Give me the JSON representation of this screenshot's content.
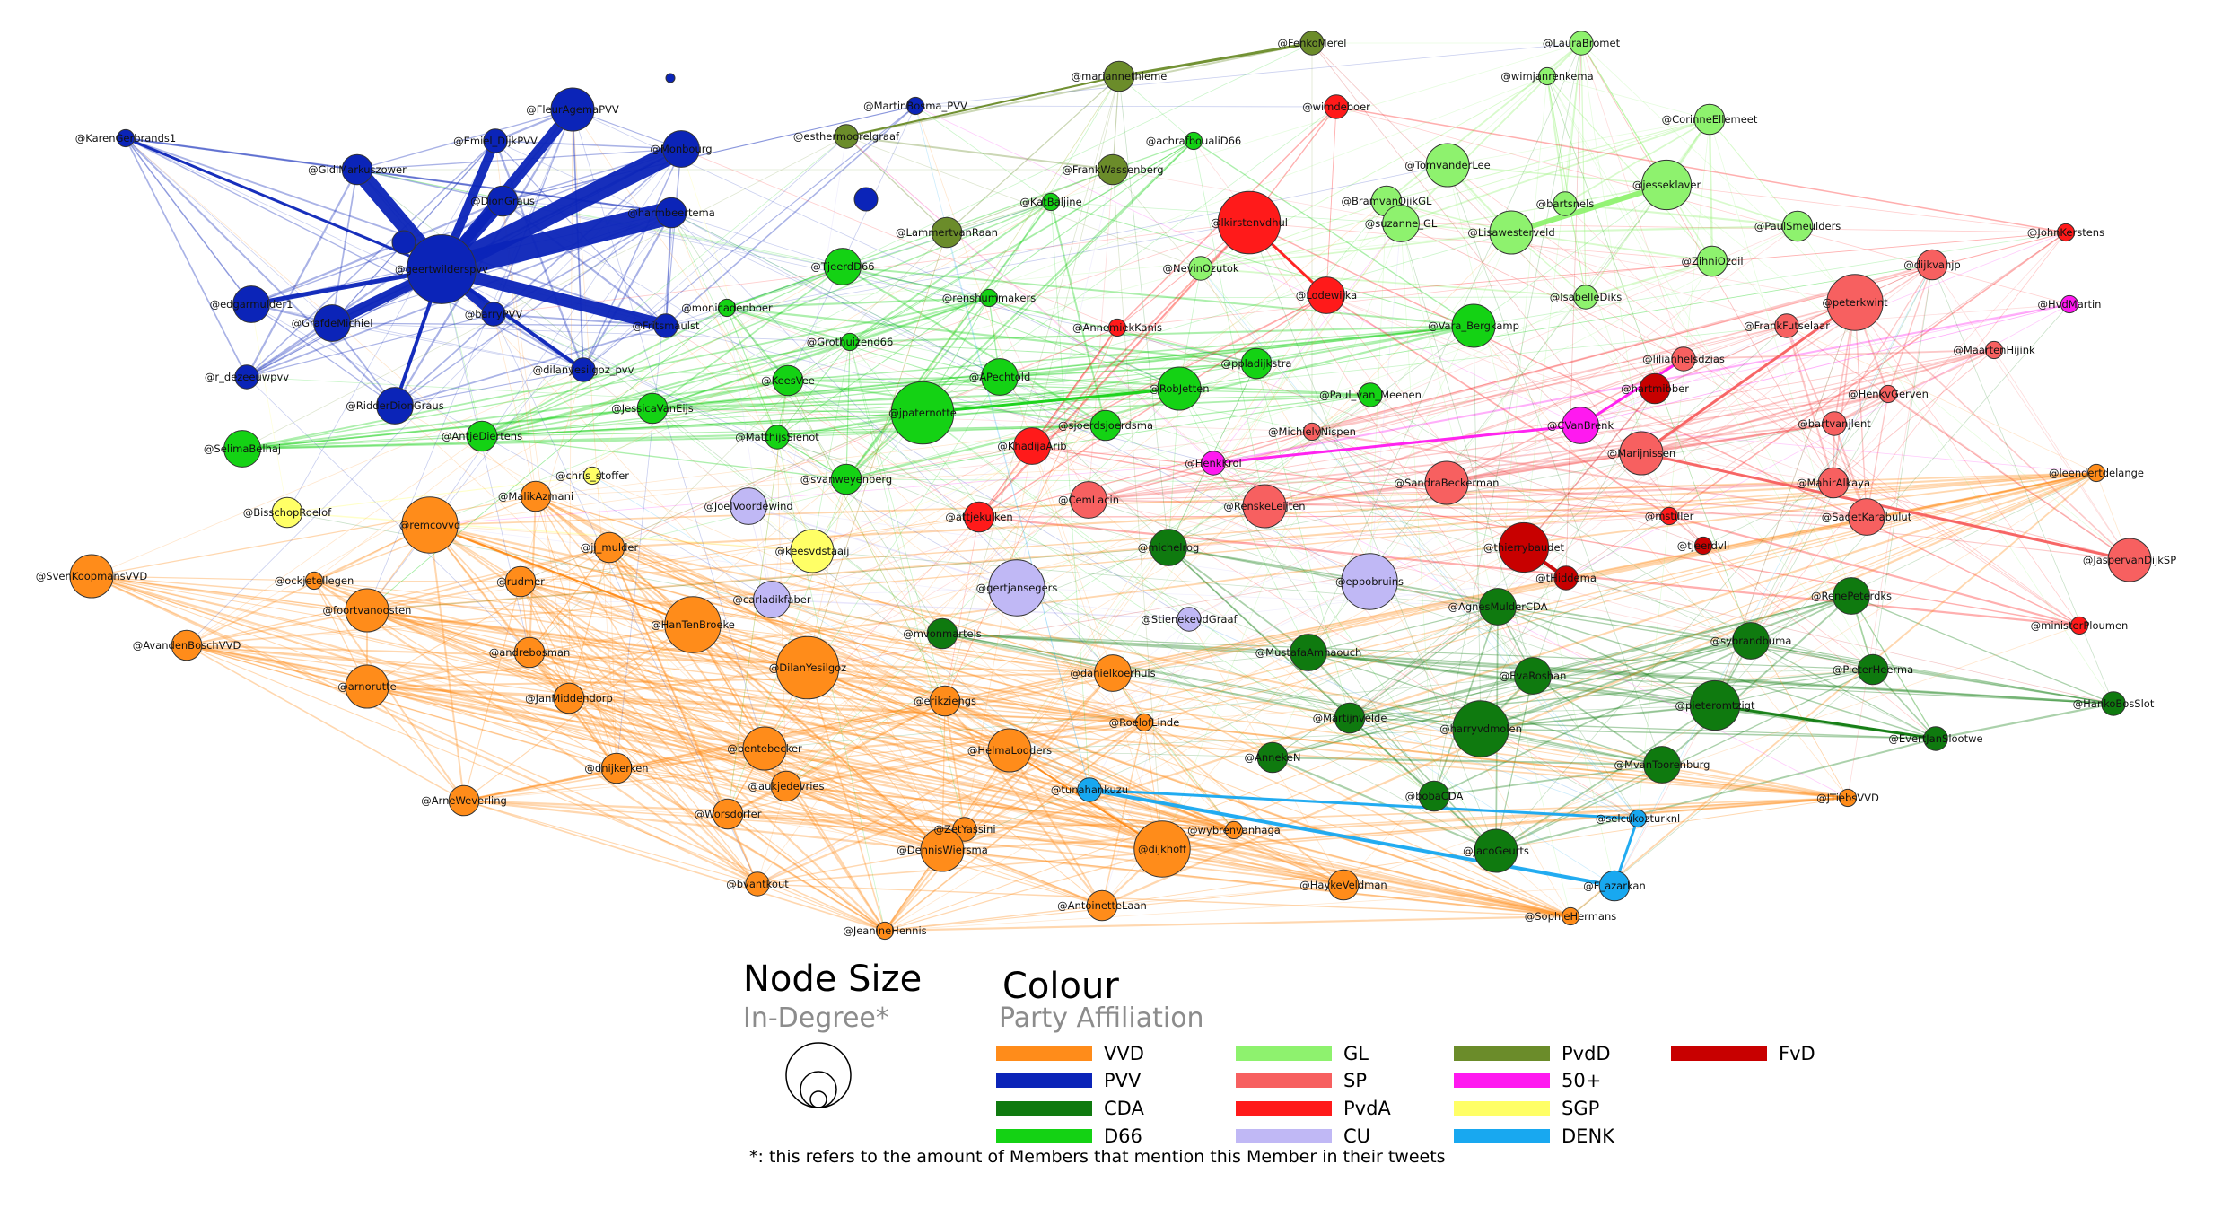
{
  "legend": {
    "size_title": "Node Size",
    "size_subtitle": "In-Degree*",
    "colour_title": "Colour",
    "colour_subtitle": "Party Affiliation",
    "footnote": "*: this refers to the amount of Members that mention this Member in their tweets",
    "parties": [
      {
        "name": "VVD",
        "color": "#ff8c1a"
      },
      {
        "name": "PVV",
        "color": "#0b24b8"
      },
      {
        "name": "CDA",
        "color": "#0f7a0f"
      },
      {
        "name": "D66",
        "color": "#14d214"
      },
      {
        "name": "GL",
        "color": "#8ef26e"
      },
      {
        "name": "SP",
        "color": "#f76060"
      },
      {
        "name": "PvdA",
        "color": "#ff1a1a"
      },
      {
        "name": "CU",
        "color": "#c0b8f5"
      },
      {
        "name": "PvdD",
        "color": "#6b8c2a"
      },
      {
        "name": "50+",
        "color": "#ff19f0"
      },
      {
        "name": "SGP",
        "color": "#ffff66"
      },
      {
        "name": "DENK",
        "color": "#18a8f0"
      },
      {
        "name": "FvD",
        "color": "#c80000"
      }
    ]
  },
  "nodes": [
    {
      "label": "@FleurAgemaPVV",
      "party": "PVV",
      "indeg": 5
    },
    {
      "label": "@Emiel_DijkPVV",
      "party": "PVV",
      "indeg": 2
    },
    {
      "label": "@Monbourg",
      "party": "PVV",
      "indeg": 4
    },
    {
      "label": "@KarenGerbrands1",
      "party": "PVV",
      "indeg": 1
    },
    {
      "label": "@GidiMarkuszower",
      "party": "PVV",
      "indeg": 3
    },
    {
      "label": "@harmbeertema",
      "party": "PVV",
      "indeg": 3
    },
    {
      "label": "@DionGraus",
      "party": "PVV",
      "indeg": 3
    },
    {
      "label": "@geertwilderspvv",
      "party": "PVV",
      "indeg": 9
    },
    {
      "label": "@edgarmulder1",
      "party": "PVV",
      "indeg": 4
    },
    {
      "label": "@GrafdeMichiel",
      "party": "PVV",
      "indeg": 4
    },
    {
      "label": "@barryPVV",
      "party": "PVV",
      "indeg": 2
    },
    {
      "label": "@Fritsmaulst",
      "party": "PVV",
      "indeg": 2
    },
    {
      "label": "@r_dezeeuwpvv",
      "party": "PVV",
      "indeg": 2
    },
    {
      "label": "@dilanyesilgoz_pvv",
      "party": "PVV",
      "indeg": 2
    },
    {
      "label": "@RidderDionGraus",
      "party": "PVV",
      "indeg": 4
    },
    {
      "label": "@MartinBosma_PVV",
      "party": "PVV",
      "indeg": 1
    },
    {
      "label": "@esthermoorelgraaf",
      "party": "PvdD",
      "indeg": 2
    },
    {
      "label": "@mariannethieme",
      "party": "PvdD",
      "indeg": 3
    },
    {
      "label": "@FrankWassenberg",
      "party": "PvdD",
      "indeg": 3
    },
    {
      "label": "@FenkoMerel",
      "party": "PvdD",
      "indeg": 2
    },
    {
      "label": "@LammertvanRaan",
      "party": "PvdD",
      "indeg": 3
    },
    {
      "label": "@wimjanrenkema",
      "party": "GL",
      "indeg": 1
    },
    {
      "label": "@LauraBromet",
      "party": "GL",
      "indeg": 2
    },
    {
      "label": "@CorinneEllemeet",
      "party": "GL",
      "indeg": 3
    },
    {
      "label": "@TomvanderLee",
      "party": "GL",
      "indeg": 5
    },
    {
      "label": "@jesseklaver",
      "party": "GL",
      "indeg": 6
    },
    {
      "label": "@BramvanOjikGL",
      "party": "GL",
      "indeg": 3
    },
    {
      "label": "@bartsnels",
      "party": "GL",
      "indeg": 2
    },
    {
      "label": "@PaulSmeulders",
      "party": "GL",
      "indeg": 3
    },
    {
      "label": "@suzanne_GL",
      "party": "GL",
      "indeg": 4
    },
    {
      "label": "@Lisawesterveld",
      "party": "GL",
      "indeg": 5
    },
    {
      "label": "@ZihniOzdil",
      "party": "GL",
      "indeg": 3
    },
    {
      "label": "@IsabelleDiks",
      "party": "GL",
      "indeg": 2
    },
    {
      "label": "@NevinOzutok",
      "party": "GL",
      "indeg": 2
    },
    {
      "label": "@achrafboualiD66",
      "party": "D66",
      "indeg": 1
    },
    {
      "label": "@TjeerdD66",
      "party": "D66",
      "indeg": 4
    },
    {
      "label": "@monicadenboer",
      "party": "D66",
      "indeg": 1
    },
    {
      "label": "@renshummakers",
      "party": "D66",
      "indeg": 1
    },
    {
      "label": "@Grothuizend66",
      "party": "D66",
      "indeg": 1
    },
    {
      "label": "@KeesVee",
      "party": "D66",
      "indeg": 3
    },
    {
      "label": "@APechtold",
      "party": "D66",
      "indeg": 4
    },
    {
      "label": "@RobJetten",
      "party": "D66",
      "indeg": 5
    },
    {
      "label": "@jpaternotte",
      "party": "D66",
      "indeg": 8
    },
    {
      "label": "@JessicaVanEijs",
      "party": "D66",
      "indeg": 3
    },
    {
      "label": "@AntjeDiertens",
      "party": "D66",
      "indeg": 3
    },
    {
      "label": "@MatthijsSienot",
      "party": "D66",
      "indeg": 2
    },
    {
      "label": "@SelimaBelhaj",
      "party": "D66",
      "indeg": 4
    },
    {
      "label": "@svanweyenberg",
      "party": "D66",
      "indeg": 3
    },
    {
      "label": "@sjoerdsjoerdsma",
      "party": "D66",
      "indeg": 3
    },
    {
      "label": "@ppladijkstra",
      "party": "D66",
      "indeg": 3
    },
    {
      "label": "@Vara_Bergkamp",
      "party": "D66",
      "indeg": 5
    },
    {
      "label": "@Paul_van_Meenen",
      "party": "D66",
      "indeg": 2
    },
    {
      "label": "@michelrog",
      "party": "CDA",
      "indeg": 4
    },
    {
      "label": "@wimdeboer",
      "party": "PvdA",
      "indeg": 2
    },
    {
      "label": "@lkirstenvdhul",
      "party": "PvdA",
      "indeg": 8
    },
    {
      "label": "@Lodewijka",
      "party": "PvdA",
      "indeg": 4
    },
    {
      "label": "@AnnemiekKanis",
      "party": "PvdA",
      "indeg": 1
    },
    {
      "label": "@KhadijaArib",
      "party": "PvdA",
      "indeg": 4
    },
    {
      "label": "@attjekuiken",
      "party": "PvdA",
      "indeg": 3
    },
    {
      "label": "@JohnKerstens",
      "party": "PvdA",
      "indeg": 1
    },
    {
      "label": "@dijkvanjp",
      "party": "SP",
      "indeg": 3
    },
    {
      "label": "@peterkwint",
      "party": "SP",
      "indeg": 7
    },
    {
      "label": "@FrankFutselaar",
      "party": "SP",
      "indeg": 2
    },
    {
      "label": "@lilianhelsdzias",
      "party": "SP",
      "indeg": 2
    },
    {
      "label": "@hartmibber",
      "party": "FvD",
      "indeg": 3
    },
    {
      "label": "@MaartenHijink",
      "party": "SP",
      "indeg": 1
    },
    {
      "label": "@HenkvGerven",
      "party": "SP",
      "indeg": 1
    },
    {
      "label": "@bartvanjlent",
      "party": "SP",
      "indeg": 2
    },
    {
      "label": "@Marijnissen",
      "party": "SP",
      "indeg": 5
    },
    {
      "label": "@MahirAlkaya",
      "party": "SP",
      "indeg": 3
    },
    {
      "label": "@SadetKarabulut",
      "party": "SP",
      "indeg": 4
    },
    {
      "label": "@JaspervanDijkSP",
      "party": "SP",
      "indeg": 5
    },
    {
      "label": "@leendertdelange",
      "party": "VVD",
      "indeg": 1
    },
    {
      "label": "@HvdMartin",
      "party": "50+",
      "indeg": 1
    },
    {
      "label": "@CemLacin",
      "party": "SP",
      "indeg": 4
    },
    {
      "label": "@RenskeLeijten",
      "party": "SP",
      "indeg": 5
    },
    {
      "label": "@SandraBeckerman",
      "party": "SP",
      "indeg": 5
    },
    {
      "label": "@MichielvNispen",
      "party": "SP",
      "indeg": 1
    },
    {
      "label": "@HenkKrol",
      "party": "50+",
      "indeg": 2
    },
    {
      "label": "@CVanBrenk",
      "party": "50+",
      "indeg": 4
    },
    {
      "label": "@thierrybaudet",
      "party": "FvD",
      "indeg": 6
    },
    {
      "label": "@tHiddema",
      "party": "FvD",
      "indeg": 2
    },
    {
      "label": "@mstiller",
      "party": "PvdA",
      "indeg": 1
    },
    {
      "label": "@tjeerdvli",
      "party": "FvD",
      "indeg": 1
    },
    {
      "label": "@eppobruins",
      "party": "CU",
      "indeg": 7
    },
    {
      "label": "@gertjansegers",
      "party": "CU",
      "indeg": 7
    },
    {
      "label": "@JoelVoordewind",
      "party": "CU",
      "indeg": 4
    },
    {
      "label": "@carladikfaber",
      "party": "CU",
      "indeg": 4
    },
    {
      "label": "@StienekevdGraaf",
      "party": "CU",
      "indeg": 2
    },
    {
      "label": "@keesvdstaaij",
      "party": "SGP",
      "indeg": 5
    },
    {
      "label": "@BisschopRoelof",
      "party": "SGP",
      "indeg": 3
    },
    {
      "label": "@chris_stoffer",
      "party": "SGP",
      "indeg": 1
    },
    {
      "label": "@AgnesMulderCDA",
      "party": "CDA",
      "indeg": 4
    },
    {
      "label": "@RenePeterdks",
      "party": "CDA",
      "indeg": 4
    },
    {
      "label": "@ministerPloumen",
      "party": "PvdA",
      "indeg": 1
    },
    {
      "label": "@mvonmartels",
      "party": "CDA",
      "indeg": 3
    },
    {
      "label": "@MustafaAmhaouch",
      "party": "CDA",
      "indeg": 4
    },
    {
      "label": "@EvaRoshan",
      "party": "CDA",
      "indeg": 4
    },
    {
      "label": "@pieteromtzigt",
      "party": "CDA",
      "indeg": 6
    },
    {
      "label": "@sybrandbuma",
      "party": "CDA",
      "indeg": 4
    },
    {
      "label": "@PieterHeerma",
      "party": "CDA",
      "indeg": 3
    },
    {
      "label": "@HankoBosSlot",
      "party": "CDA",
      "indeg": 2
    },
    {
      "label": "@harryvdmolen",
      "party": "CDA",
      "indeg": 7
    },
    {
      "label": "@Martijnvelde",
      "party": "CDA",
      "indeg": 3
    },
    {
      "label": "@AnnekeN",
      "party": "CDA",
      "indeg": 3
    },
    {
      "label": "@EvertJanSlootwe",
      "party": "CDA",
      "indeg": 2
    },
    {
      "label": "@MvanToorenburg",
      "party": "CDA",
      "indeg": 4
    },
    {
      "label": "@bobaCDA",
      "party": "CDA",
      "indeg": 3
    },
    {
      "label": "@JacoGeurts",
      "party": "CDA",
      "indeg": 5
    },
    {
      "label": "@tunahankuzu",
      "party": "DENK",
      "indeg": 2
    },
    {
      "label": "@selcukozturknl",
      "party": "DENK",
      "indeg": 1
    },
    {
      "label": "@F_azarkan",
      "party": "DENK",
      "indeg": 3
    },
    {
      "label": "@JTiebsVVD",
      "party": "VVD",
      "indeg": 1
    },
    {
      "label": "@SophieHermans",
      "party": "VVD",
      "indeg": 1
    },
    {
      "label": "@wybrenvanhaga",
      "party": "VVD",
      "indeg": 1
    },
    {
      "label": "@HaykeVeldman",
      "party": "VVD",
      "indeg": 3
    },
    {
      "label": "@remcovvd",
      "party": "VVD",
      "indeg": 7
    },
    {
      "label": "@MalikAzmani",
      "party": "VVD",
      "indeg": 3
    },
    {
      "label": "@ockjetellegen",
      "party": "VVD",
      "indeg": 1
    },
    {
      "label": "@jj_mulder",
      "party": "VVD",
      "indeg": 3
    },
    {
      "label": "@SvenKoopmansVVD",
      "party": "VVD",
      "indeg": 5
    },
    {
      "label": "@rudmer",
      "party": "VVD",
      "indeg": 3
    },
    {
      "label": "@foortvanoosten",
      "party": "VVD",
      "indeg": 5
    },
    {
      "label": "@AvandenBoschVVD",
      "party": "VVD",
      "indeg": 3
    },
    {
      "label": "@HanTenBroeke",
      "party": "VVD",
      "indeg": 7
    },
    {
      "label": "@DilanYesilgoz",
      "party": "VVD",
      "indeg": 8
    },
    {
      "label": "@andrebosman",
      "party": "VVD",
      "indeg": 3
    },
    {
      "label": "@arnorutte",
      "party": "VVD",
      "indeg": 5
    },
    {
      "label": "@JanMiddendorp",
      "party": "VVD",
      "indeg": 3
    },
    {
      "label": "@erikziengs",
      "party": "VVD",
      "indeg": 3
    },
    {
      "label": "@danielkoerhuis",
      "party": "VVD",
      "indeg": 4
    },
    {
      "label": "@RoelofLinde",
      "party": "VVD",
      "indeg": 1
    },
    {
      "label": "@bentebecker",
      "party": "VVD",
      "indeg": 5
    },
    {
      "label": "@HelmaLodders",
      "party": "VVD",
      "indeg": 5
    },
    {
      "label": "@dnijkerken",
      "party": "VVD",
      "indeg": 3
    },
    {
      "label": "@aukjedevries",
      "party": "VVD",
      "indeg": 3
    },
    {
      "label": "@ArneWeverling",
      "party": "VVD",
      "indeg": 3
    },
    {
      "label": "@Worsdorfer",
      "party": "VVD",
      "indeg": 3
    },
    {
      "label": "@ZetYassini",
      "party": "VVD",
      "indeg": 2
    },
    {
      "label": "@DennisWiersma",
      "party": "VVD",
      "indeg": 5
    },
    {
      "label": "@dijkhoff",
      "party": "VVD",
      "indeg": 7
    },
    {
      "label": "@bvantkout",
      "party": "VVD",
      "indeg": 2
    },
    {
      "label": "@AntoinetteLaan",
      "party": "VVD",
      "indeg": 3
    },
    {
      "label": "@JeanineHennis",
      "party": "VVD",
      "indeg": 1
    },
    {
      "label": "@KatBaljine",
      "party": "D66",
      "indeg": 1
    }
  ]
}
